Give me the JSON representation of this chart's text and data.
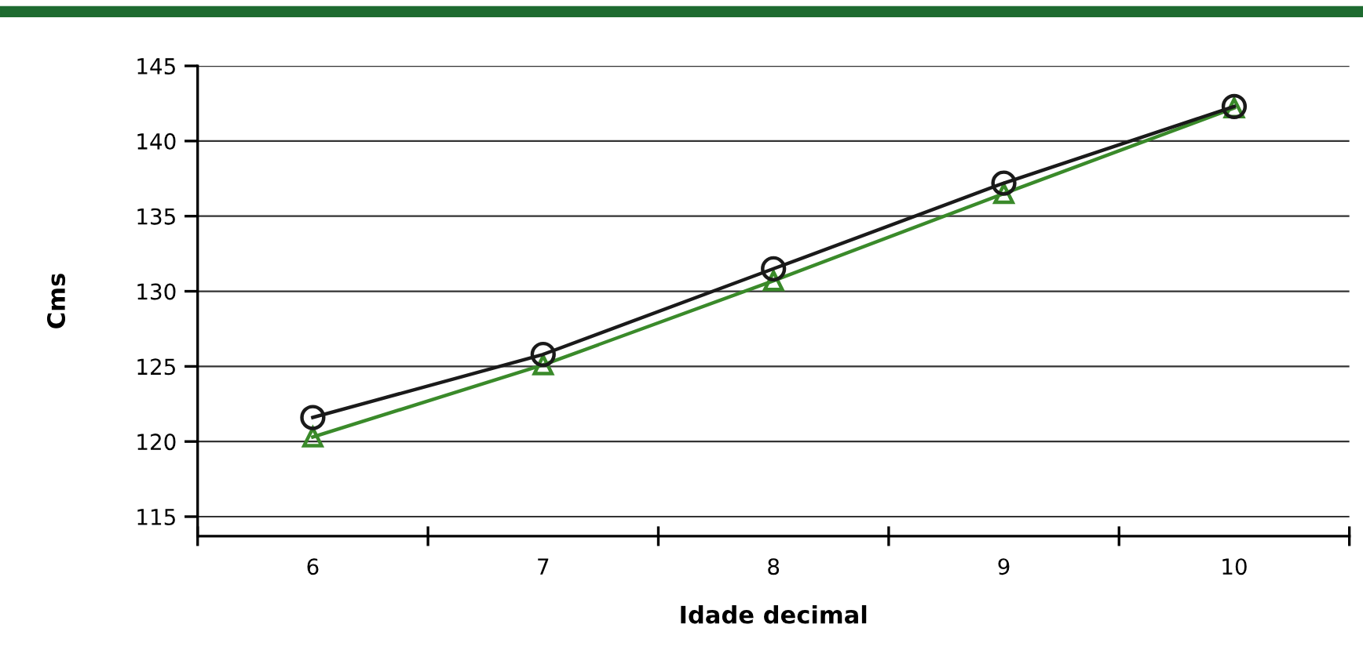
{
  "chart_data": {
    "type": "line",
    "xlabel": "Idade decimal",
    "ylabel": "Cms",
    "categories": [
      "6",
      "7",
      "8",
      "9",
      "10"
    ],
    "series": [
      {
        "color": "#1a1a1a",
        "marker": "circle",
        "values": [
          121.6,
          125.8,
          131.5,
          137.2,
          142.3
        ]
      },
      {
        "color": "#3a8a2a",
        "marker": "triangle",
        "values": [
          120.3,
          125.1,
          130.7,
          136.5,
          142.2
        ]
      }
    ],
    "ylim": [
      113.7,
      145
    ],
    "yticks": [
      115,
      120,
      125,
      130,
      135,
      140,
      145
    ],
    "grid": "y",
    "legend": false,
    "line_style": "solid"
  }
}
